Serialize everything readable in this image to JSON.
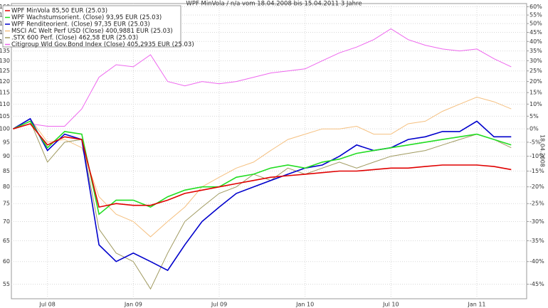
{
  "chart_data": {
    "type": "line",
    "title": "WPF MinVola / n/a vom 18.04.2008 bis 15.04.2011 3 Jahre",
    "y2_label": "18.04.2008",
    "x": [
      2008.3,
      2008.4,
      2008.5,
      2008.6,
      2008.7,
      2008.8,
      2008.9,
      2009.0,
      2009.1,
      2009.2,
      2009.3,
      2009.4,
      2009.5,
      2009.6,
      2009.7,
      2009.8,
      2009.9,
      2010.0,
      2010.1,
      2010.2,
      2010.3,
      2010.4,
      2010.5,
      2010.6,
      2010.7,
      2010.8,
      2010.9,
      2011.0,
      2011.1,
      2011.2
    ],
    "xlim": [
      2008.29,
      2011.29
    ],
    "xticks": [
      {
        "value": 2008.5,
        "label": "Jul 08"
      },
      {
        "value": 2009.0,
        "label": "Jan 09"
      },
      {
        "value": 2009.5,
        "label": "Jul 09"
      },
      {
        "value": 2010.0,
        "label": "Jan 10"
      },
      {
        "value": 2010.5,
        "label": "Jul 10"
      },
      {
        "value": 2011.0,
        "label": "Jan 11"
      }
    ],
    "ylim": [
      52,
      162
    ],
    "log_scale": true,
    "yticks": [
      55,
      60,
      65,
      70,
      75,
      80,
      85,
      90,
      95,
      100,
      105,
      110,
      115,
      120,
      125,
      130,
      135,
      140,
      145,
      150,
      155,
      160
    ],
    "y2lim": [
      -48,
      62
    ],
    "y2_scale": "log_return_percent",
    "y2ticks": [
      {
        "value": -45,
        "label": "-45%"
      },
      {
        "value": -40,
        "label": "-40%"
      },
      {
        "value": -35,
        "label": "-35%"
      },
      {
        "value": -30,
        "label": "-30%"
      },
      {
        "value": -25,
        "label": "-25%"
      },
      {
        "value": -20,
        "label": "-20%"
      },
      {
        "value": -15,
        "label": "-15%"
      },
      {
        "value": -10,
        "label": "-10%"
      },
      {
        "value": -5,
        "label": "-5%"
      },
      {
        "value": 0,
        "label": "0%"
      },
      {
        "value": 5,
        "label": "5%"
      },
      {
        "value": 10,
        "label": "10%"
      },
      {
        "value": 15,
        "label": "15%"
      },
      {
        "value": 20,
        "label": "20%"
      },
      {
        "value": 25,
        "label": "25%"
      },
      {
        "value": 30,
        "label": "30%"
      },
      {
        "value": 35,
        "label": "35%"
      },
      {
        "value": 40,
        "label": "40%"
      },
      {
        "value": 45,
        "label": "45%"
      },
      {
        "value": 50,
        "label": "50%"
      },
      {
        "value": 55,
        "label": "55%"
      },
      {
        "value": 60,
        "label": "60%"
      }
    ],
    "grid": true,
    "series": [
      {
        "name": "Citigroup Wld Gov.Bond Index (Close) 405,2935 EUR (25.03)",
        "color": "#ee66ee",
        "values": [
          100,
          102,
          101,
          101,
          108,
          122,
          128,
          127,
          133,
          120,
          118,
          120,
          119,
          120,
          122,
          124,
          125,
          126,
          130,
          134,
          137,
          141,
          147,
          141,
          138,
          136,
          135,
          136,
          131,
          127
        ]
      },
      {
        "name": "MSCI AC Welt Perf USD (Close) 400,9881 EUR (25.03)",
        "color": "#f5c080",
        "values": [
          100,
          104,
          95,
          96,
          93,
          77,
          72,
          70,
          66,
          70,
          74,
          80,
          83,
          86,
          88,
          92,
          96,
          98,
          100,
          100,
          101,
          98,
          98,
          102,
          103,
          107,
          110,
          113,
          111,
          108
        ]
      },
      {
        "name": ".STX 600 Perf. (Close) 462,58 EUR (25.03)",
        "color": "#a09a60",
        "values": [
          100,
          103,
          88,
          95,
          96,
          68,
          62,
          60,
          54,
          62,
          70,
          74,
          78,
          80,
          84,
          82,
          86,
          84,
          86,
          88,
          86,
          88,
          90,
          91,
          92,
          94,
          96,
          98,
          96,
          93
        ]
      },
      {
        "name": "WPF Renditeorient. (Close) 97,35 EUR (25.03)",
        "color": "#0000cc",
        "values": [
          100,
          104,
          92,
          98,
          96,
          64,
          60,
          62,
          60,
          58,
          64,
          70,
          74,
          78,
          80,
          82,
          84,
          86,
          87,
          90,
          94,
          92,
          93,
          96,
          97,
          99,
          99,
          103,
          97,
          97
        ]
      },
      {
        "name": "WPF Wachstumsorient. (Close) 93,95 EUR (25.03)",
        "color": "#22dd22",
        "values": [
          100,
          103,
          93,
          99,
          98,
          72,
          76,
          76,
          74,
          77,
          79,
          80,
          80,
          83,
          84,
          86,
          87,
          86,
          88,
          89,
          91,
          92,
          93,
          94,
          95,
          96,
          97,
          98,
          96,
          94
        ]
      },
      {
        "name": "WPF MinVola 85,50 EUR (25.03)",
        "color": "#e00000",
        "values": [
          100,
          102,
          94,
          97,
          96,
          74,
          75,
          74.5,
          74.5,
          76,
          78,
          79,
          80,
          81,
          82,
          83,
          83.5,
          84,
          84.5,
          85,
          85,
          85.5,
          86,
          86,
          86.5,
          87,
          87,
          87,
          86.5,
          85.5
        ]
      }
    ],
    "legend_order": [
      5,
      4,
      3,
      1,
      2,
      0
    ]
  }
}
